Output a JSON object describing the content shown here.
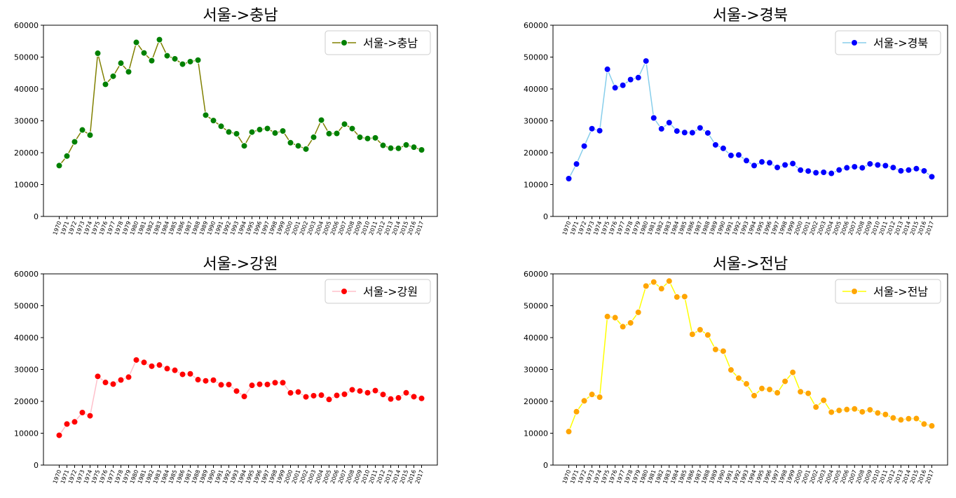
{
  "chart_data": [
    {
      "type": "line",
      "title": "서울->충남",
      "legend_position": "top-right",
      "ylim": [
        0,
        60000
      ],
      "yticks": [
        0,
        10000,
        20000,
        30000,
        40000,
        50000,
        60000
      ],
      "x": [
        "1970",
        "1971",
        "1972",
        "1973",
        "1974",
        "1975",
        "1976",
        "1977",
        "1978",
        "1979",
        "1980",
        "1981",
        "1982",
        "1983",
        "1984",
        "1985",
        "1986",
        "1987",
        "1988",
        "1989",
        "1990",
        "1991",
        "1992",
        "1993",
        "1994",
        "1995",
        "1996",
        "1997",
        "1998",
        "1999",
        "2000",
        "2001",
        "2002",
        "2003",
        "2004",
        "2005",
        "2006",
        "2007",
        "2008",
        "2009",
        "2010",
        "2011",
        "2012",
        "2013",
        "2014",
        "2015",
        "2016",
        "2017"
      ],
      "series": [
        {
          "name": "서울->충남",
          "line_color": "#808000",
          "marker_color": "#008000",
          "values": [
            15954,
            18943,
            23406,
            27139,
            25509,
            51205,
            41447,
            43993,
            48091,
            45388,
            54608,
            51300,
            48877,
            55464,
            50419,
            49464,
            47787,
            48575,
            49052,
            31797,
            30081,
            28293,
            26502,
            25939,
            22152,
            26460,
            27243,
            27595,
            26171,
            26815,
            23126,
            22152,
            21140,
            24849,
            30227,
            25981,
            26042,
            28967,
            27560,
            24842,
            24439,
            24655,
            22296,
            21415,
            21367,
            22439,
            21724,
            20876
          ]
        }
      ]
    },
    {
      "type": "line",
      "title": "서울->경북",
      "legend_position": "top-right",
      "ylim": [
        0,
        60000
      ],
      "yticks": [
        0,
        10000,
        20000,
        30000,
        40000,
        50000,
        60000
      ],
      "x": [
        "1970",
        "1971",
        "1972",
        "1973",
        "1974",
        "1975",
        "1976",
        "1977",
        "1978",
        "1979",
        "1980",
        "1981",
        "1982",
        "1983",
        "1984",
        "1985",
        "1986",
        "1987",
        "1988",
        "1989",
        "1990",
        "1991",
        "1992",
        "1993",
        "1994",
        "1995",
        "1996",
        "1997",
        "1998",
        "1999",
        "2000",
        "2001",
        "2002",
        "2003",
        "2004",
        "2005",
        "2006",
        "2007",
        "2008",
        "2009",
        "2010",
        "2011",
        "2012",
        "2013",
        "2014",
        "2015",
        "2016",
        "2017"
      ],
      "series": [
        {
          "name": "서울->경북",
          "line_color": "#87ceeb",
          "marker_color": "#0000ff",
          "values": [
            11868,
            16459,
            22073,
            27531,
            26902,
            46177,
            40376,
            41155,
            42940,
            43565,
            48772,
            30909,
            27490,
            29425,
            26791,
            26322,
            26272,
            27783,
            26190,
            22453,
            21369,
            19144,
            19288,
            17521,
            15965,
            17110,
            16830,
            15365,
            16157,
            16595,
            14540,
            14240,
            13712,
            13848,
            13506,
            14577,
            15267,
            15582,
            15259,
            16496,
            16154,
            15934,
            15342,
            14313,
            14556,
            14988,
            14295,
            12458
          ]
        }
      ]
    },
    {
      "type": "line",
      "title": "서울->강원",
      "legend_position": "top-right",
      "ylim": [
        0,
        60000
      ],
      "yticks": [
        0,
        10000,
        20000,
        30000,
        40000,
        50000,
        60000
      ],
      "x": [
        "1970",
        "1971",
        "1972",
        "1973",
        "1974",
        "1975",
        "1976",
        "1977",
        "1978",
        "1979",
        "1980",
        "1981",
        "1982",
        "1983",
        "1984",
        "1985",
        "1986",
        "1987",
        "1988",
        "1989",
        "1990",
        "1991",
        "1992",
        "1993",
        "1994",
        "1995",
        "1996",
        "1997",
        "1998",
        "1999",
        "2000",
        "2001",
        "2002",
        "2003",
        "2004",
        "2005",
        "2006",
        "2007",
        "2008",
        "2009",
        "2010",
        "2011",
        "2012",
        "2013",
        "2014",
        "2015",
        "2016",
        "2017"
      ],
      "series": [
        {
          "name": "서울->강원",
          "line_color": "#ffc0cb",
          "marker_color": "#ff0000",
          "values": [
            9352,
            12885,
            13561,
            16481,
            15479,
            27837,
            25927,
            25415,
            26700,
            27599,
            32980,
            32216,
            31025,
            31391,
            30274,
            29747,
            28467,
            28623,
            26802,
            26437,
            26650,
            25183,
            25257,
            23223,
            21540,
            25014,
            25355,
            25304,
            25855,
            25853,
            22656,
            22926,
            21413,
            21763,
            21942,
            20600,
            21861,
            22226,
            23630,
            23252,
            22696,
            23376,
            22156,
            20737,
            21092,
            22688,
            21468,
            20923
          ]
        }
      ]
    },
    {
      "type": "line",
      "title": "서울->전남",
      "legend_position": "top-right",
      "ylim": [
        0,
        60000
      ],
      "yticks": [
        0,
        10000,
        20000,
        30000,
        40000,
        50000,
        60000
      ],
      "x": [
        "1970",
        "1971",
        "1972",
        "1973",
        "1974",
        "1975",
        "1976",
        "1977",
        "1978",
        "1979",
        "1980",
        "1981",
        "1982",
        "1983",
        "1984",
        "1985",
        "1986",
        "1987",
        "1988",
        "1989",
        "1990",
        "1991",
        "1992",
        "1993",
        "1994",
        "1995",
        "1996",
        "1997",
        "1998",
        "1999",
        "2000",
        "2001",
        "2002",
        "2003",
        "2004",
        "2005",
        "2006",
        "2007",
        "2008",
        "2009",
        "2010",
        "2011",
        "2012",
        "2013",
        "2014",
        "2015",
        "2016",
        "2017"
      ],
      "series": [
        {
          "name": "서울->전남",
          "line_color": "#ffff00",
          "marker_color": "#ffa500",
          "values": [
            10513,
            16755,
            20157,
            22160,
            21314,
            46610,
            46251,
            43430,
            44624,
            47934,
            56180,
            57438,
            55358,
            57743,
            52736,
            52863,
            41044,
            42460,
            40819,
            36280,
            35755,
            29855,
            27271,
            25487,
            21797,
            24026,
            23721,
            22683,
            26269,
            29084,
            23011,
            22507,
            18205,
            20327,
            16607,
            17148,
            17435,
            17631,
            16707,
            17344,
            16359,
            15881,
            14802,
            14193,
            14553,
            14603,
            12871,
            12298
          ]
        }
      ]
    }
  ]
}
